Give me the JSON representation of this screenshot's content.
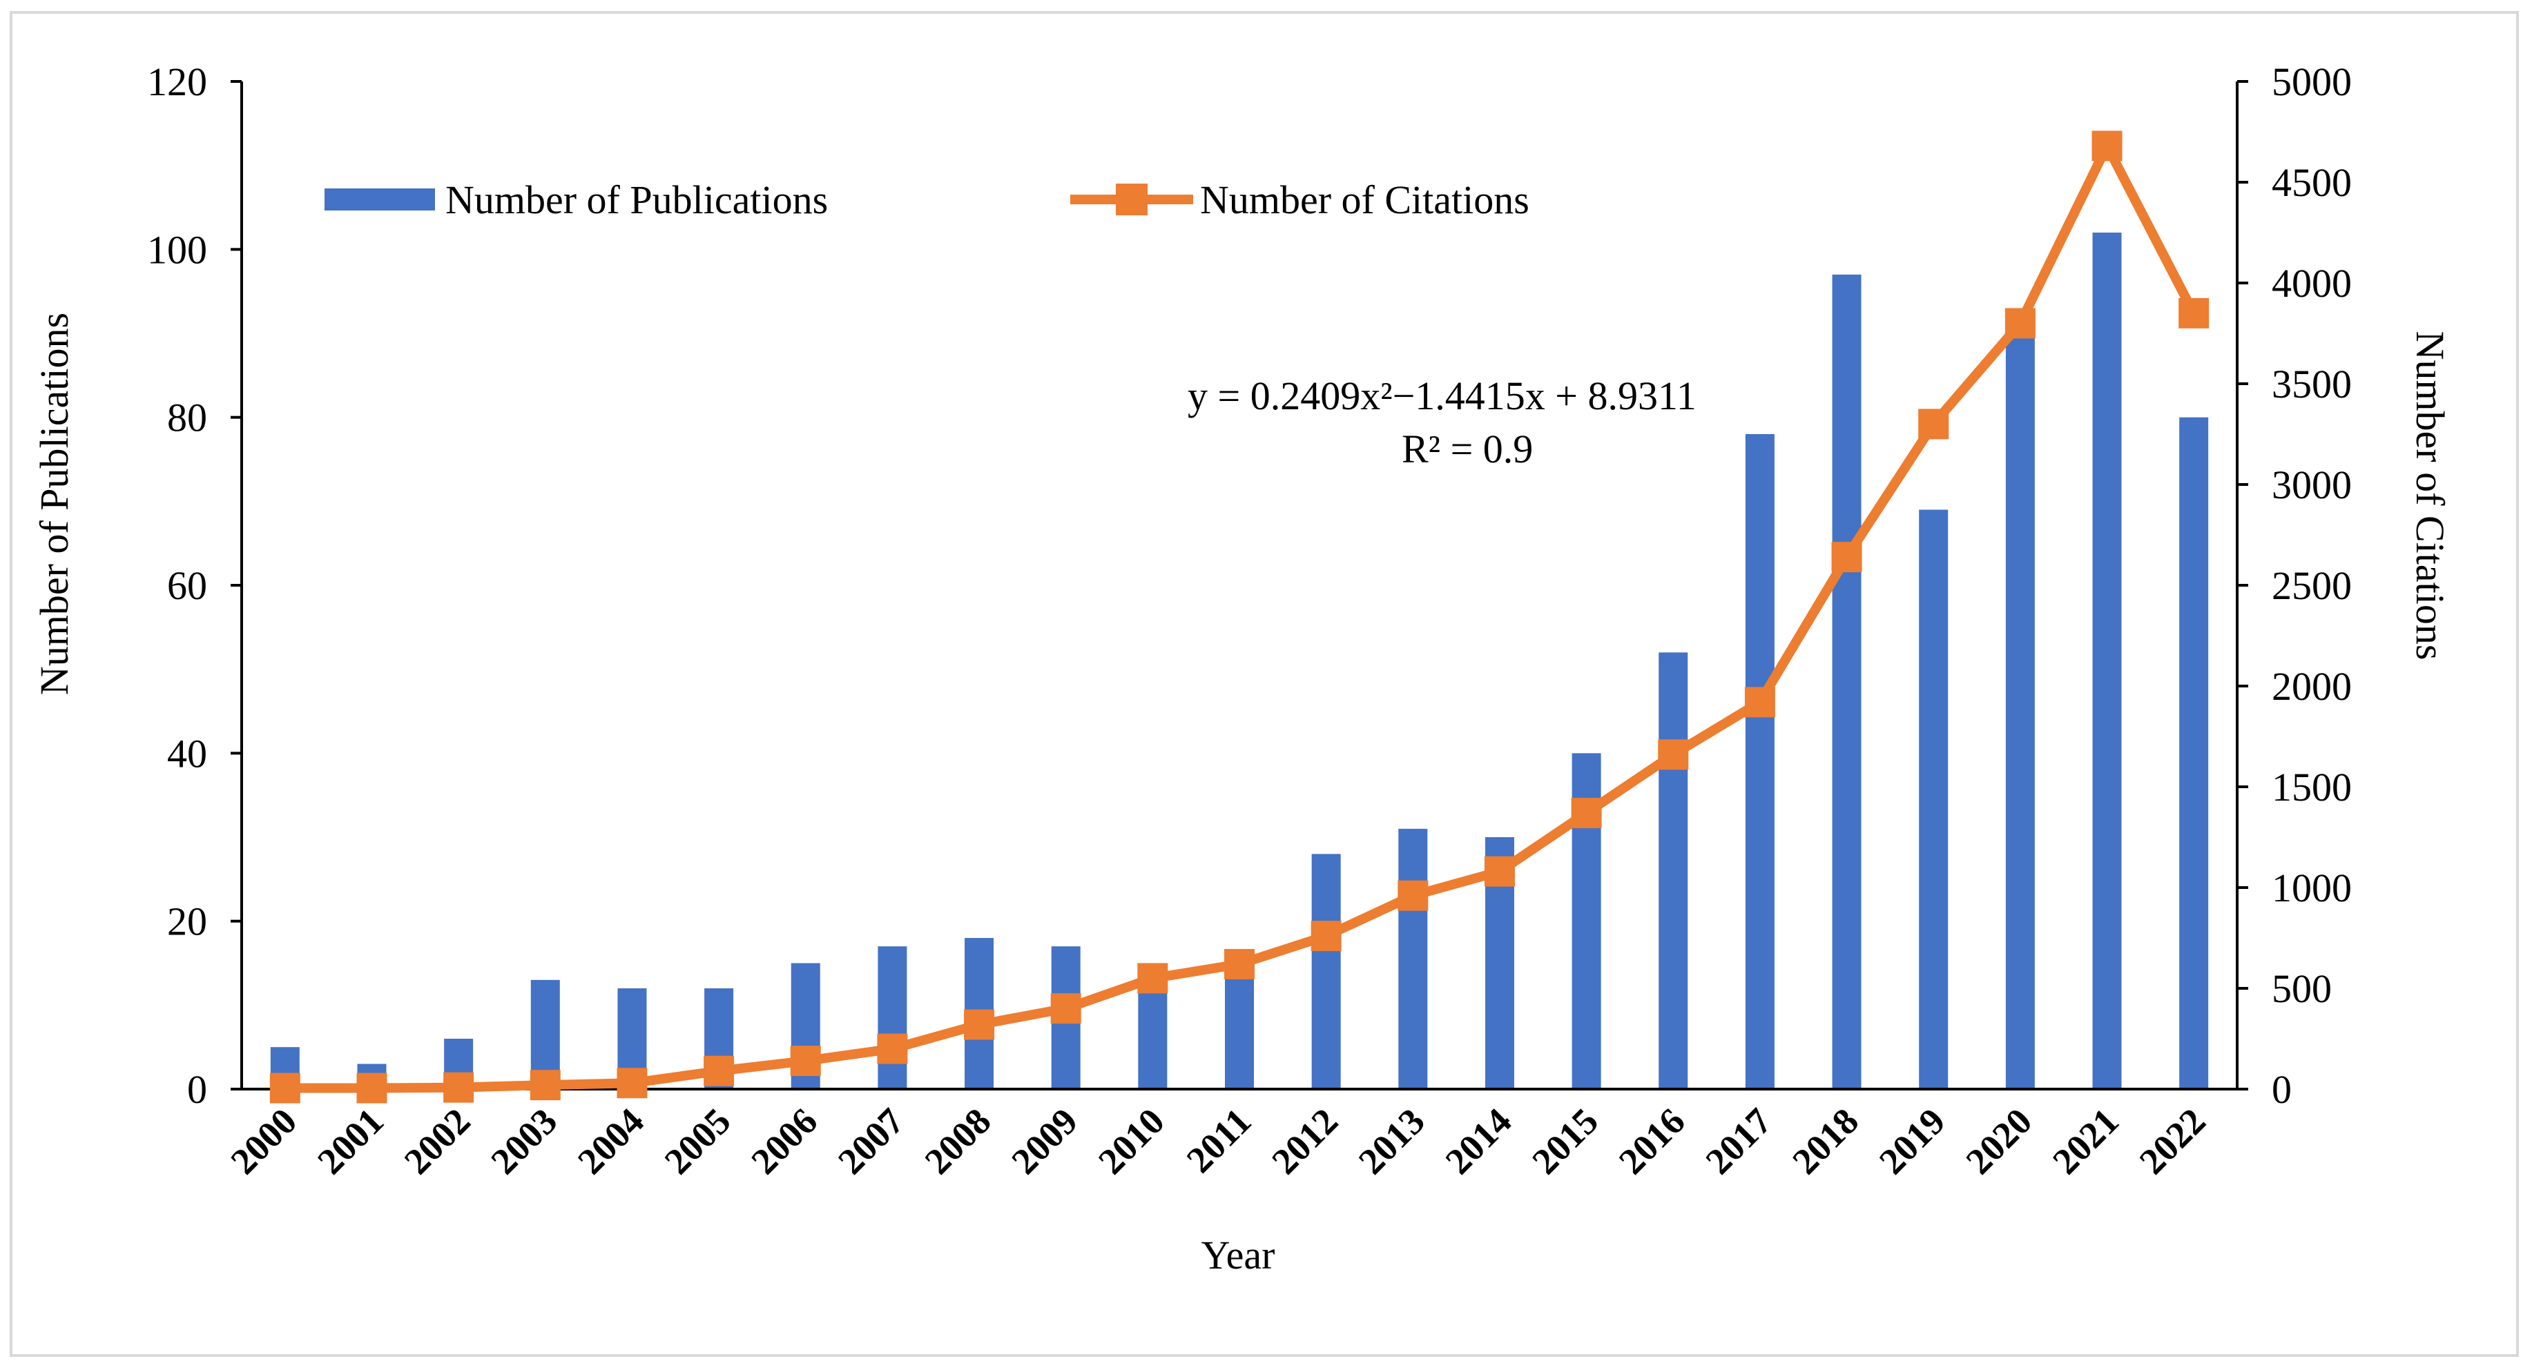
{
  "chart_data": {
    "type": "bar",
    "x": [
      "2000",
      "2001",
      "2002",
      "2003",
      "2004",
      "2005",
      "2006",
      "2007",
      "2008",
      "2009",
      "2010",
      "2011",
      "2012",
      "2013",
      "2014",
      "2015",
      "2016",
      "2017",
      "2018",
      "2019",
      "2020",
      "2021",
      "2022"
    ],
    "xlabel": "Year",
    "series": [
      {
        "name": "Number of Publications",
        "type": "bar",
        "axis": "left",
        "color": "#4472C4",
        "values": [
          5,
          3,
          6,
          13,
          12,
          12,
          15,
          17,
          18,
          17,
          14,
          15,
          28,
          31,
          30,
          40,
          52,
          78,
          97,
          69,
          91,
          102,
          80
        ]
      },
      {
        "name": "Number of Citations",
        "type": "line",
        "axis": "right",
        "color": "#ED7D31",
        "marker": "square",
        "values": [
          5,
          5,
          8,
          20,
          30,
          90,
          140,
          200,
          320,
          400,
          550,
          620,
          760,
          960,
          1080,
          1370,
          1660,
          1920,
          2640,
          3300,
          3800,
          4680,
          3850
        ]
      }
    ],
    "y_left": {
      "label": "Number of Publications",
      "range": [
        0,
        120
      ],
      "ticks": [
        0,
        20,
        40,
        60,
        80,
        100,
        120
      ]
    },
    "y_right": {
      "label": "Number of Citations",
      "range": [
        0,
        5000
      ],
      "ticks": [
        0,
        500,
        1000,
        1500,
        2000,
        2500,
        3000,
        3500,
        4000,
        4500,
        5000
      ]
    },
    "annotation": {
      "line1": "y = 0.2409x²−1.4415x + 8.9311",
      "line2": "R² = 0.9"
    },
    "legend": {
      "placement": "top"
    },
    "grid": false
  }
}
